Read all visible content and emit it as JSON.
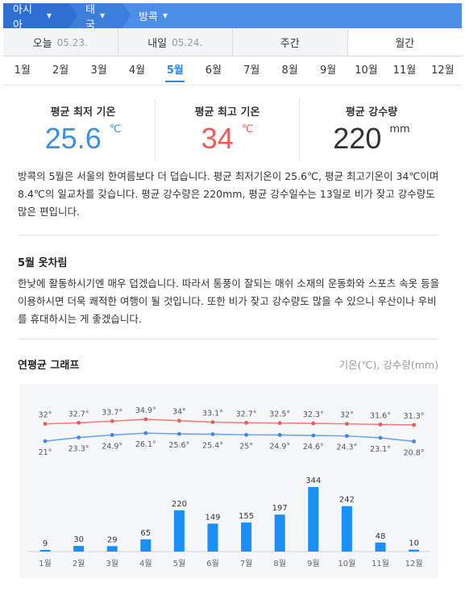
{
  "breadcrumb": [
    {
      "label": "아시아"
    },
    {
      "label": "태국"
    },
    {
      "label": "방콕"
    }
  ],
  "tabs": [
    {
      "label": "오늘",
      "date": "05.23."
    },
    {
      "label": "내일",
      "date": "05.24."
    },
    {
      "label": "주간",
      "date": ""
    },
    {
      "label": "월간",
      "date": ""
    }
  ],
  "active_tab": 3,
  "months": [
    "1월",
    "2월",
    "3월",
    "4월",
    "5월",
    "6월",
    "7월",
    "8월",
    "9월",
    "10월",
    "11월",
    "12월"
  ],
  "active_month": 4,
  "summary": {
    "low": {
      "label": "평균 최저 기온",
      "value": "25.6",
      "unit": "℃"
    },
    "high": {
      "label": "평균 최고 기온",
      "value": "34",
      "unit": "℃"
    },
    "rain": {
      "label": "평균 강수량",
      "value": "220",
      "unit": "mm"
    }
  },
  "description": "방콕의 5월은 서울의 한여름보다 더 덥습니다. 평균 최저기온이 25.6℃, 평균 최고기온이 34℃이며 8.4℃의 일교차를 갖습니다. 평균 강수량은 220mm, 평균 강수일수는 13일로 비가 잦고 강수량도 많은 편입니다.",
  "clothing": {
    "title": "5월 옷차림",
    "text": "한낮에 활동하시기엔 매우 덥겠습니다. 따라서 통풍이 잘되는 매쉬 소재의 운동화와 스포츠 속옷 등을 이용하시면 더욱 쾌적한 여행이 될 것입니다. 또한 비가 잦고 강수량도 많을 수 있으니 우산이나 우비를 휴대하시는 게 좋겠습니다."
  },
  "graph": {
    "title": "연평균 그래프",
    "note": "기온(℃), 강수량(mm)"
  },
  "chart_data": {
    "type": "line+bar",
    "categories": [
      "1월",
      "2월",
      "3월",
      "4월",
      "5월",
      "6월",
      "7월",
      "8월",
      "9월",
      "10월",
      "11월",
      "12월"
    ],
    "series": [
      {
        "values": [
          32,
          32.7,
          33.7,
          34.9,
          34,
          33.1,
          32.7,
          32.5,
          32.3,
          32,
          31.6,
          31.3
        ],
        "color": "#f08080"
      },
      {
        "values": [
          21,
          23.3,
          24.9,
          26.1,
          25.6,
          25.4,
          25,
          24.9,
          24.6,
          24.3,
          23.1,
          20.8
        ],
        "color": "#6aa6ee"
      },
      {
        "values": [
          9,
          30,
          29,
          65,
          220,
          149,
          155,
          197,
          344,
          242,
          48,
          10
        ],
        "color": "#1a8ff5"
      }
    ],
    "temp_labels_high": [
      "32°",
      "32.7°",
      "33.7°",
      "34.9°",
      "34°",
      "33.1°",
      "32.7°",
      "32.5°",
      "32.3°",
      "32°",
      "31.6°",
      "31.3°"
    ],
    "temp_labels_low": [
      "21°",
      "23.3°",
      "24.9°",
      "26.1°",
      "25.6°",
      "25.4°",
      "25°",
      "24.9°",
      "24.6°",
      "24.3°",
      "23.1°",
      "20.8°"
    ]
  },
  "colors": {
    "accent": "#2f86e0",
    "breadcrumb": "#4a8ee8",
    "low_temp": "#3d8fe0",
    "high_temp": "#f05a5a",
    "bar": "#1a8ff5"
  }
}
